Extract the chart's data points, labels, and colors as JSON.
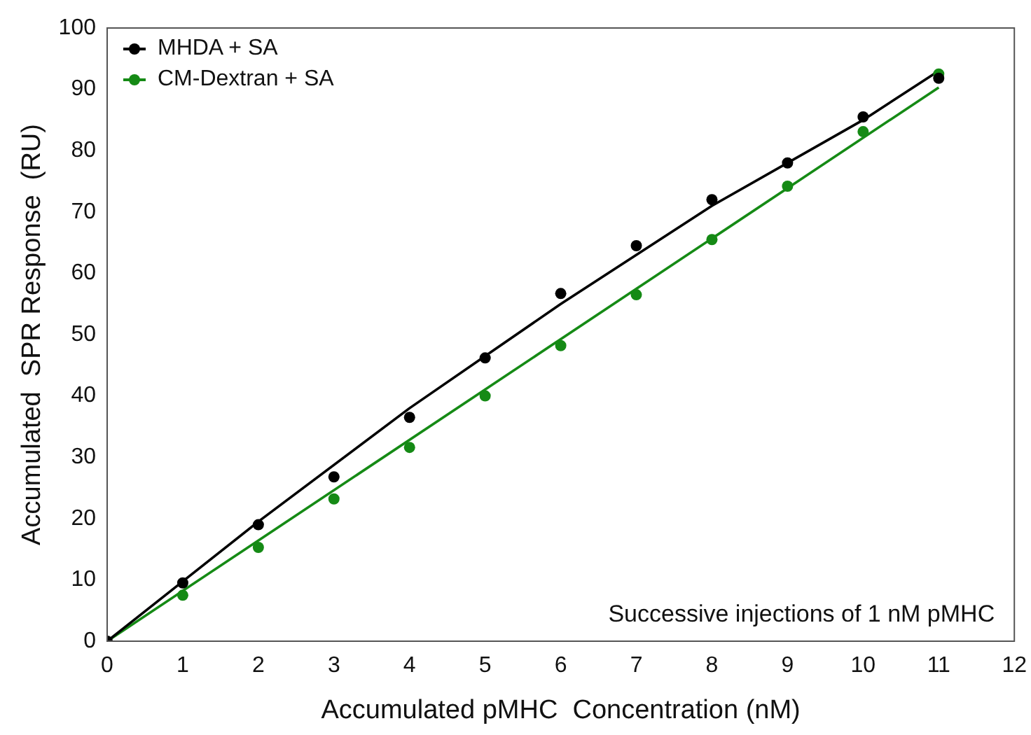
{
  "chart_data": {
    "type": "scatter",
    "xlabel": "Accumulated pMHC  Concentration (nM)",
    "ylabel": "Accumulated  SPR Response  (RU)",
    "x": [
      0,
      1,
      2,
      3,
      4,
      5,
      6,
      7,
      8,
      9,
      10,
      11
    ],
    "series": [
      {
        "name": "MHDA + SA",
        "color": "#000000",
        "values": [
          0,
          9.5,
          19,
          26.8,
          36.5,
          46.2,
          56.7,
          64.5,
          72,
          78,
          85.5,
          91.8
        ]
      },
      {
        "name": "CM-Dextran + SA",
        "color": "#158a15",
        "values": [
          null,
          7.5,
          15.3,
          23.2,
          31.6,
          40,
          48.2,
          56.5,
          65.5,
          74.2,
          83.1,
          92.5
        ]
      },
      {
        "type": "line",
        "color": "#000000",
        "x": [
          0,
          2,
          4,
          6,
          8,
          10,
          11
        ],
        "values": [
          0,
          19.5,
          38,
          55,
          71,
          85,
          93
        ],
        "marker": "none"
      },
      {
        "type": "line",
        "color": "#158a15",
        "x": [
          0,
          11
        ],
        "values": [
          0,
          90.3
        ],
        "marker": "none"
      }
    ],
    "xlim": [
      0,
      12
    ],
    "xticks": [
      0,
      1,
      2,
      3,
      4,
      5,
      6,
      7,
      8,
      9,
      10,
      11,
      12
    ],
    "ylim": [
      0,
      100
    ],
    "yticks": [
      0,
      10,
      20,
      30,
      40,
      50,
      60,
      70,
      80,
      90,
      100
    ],
    "marker": "circle",
    "line_style": "solid",
    "grid": false,
    "legend": "top left",
    "annotations": [
      "Successive injections of 1 nM pMHC"
    ]
  }
}
